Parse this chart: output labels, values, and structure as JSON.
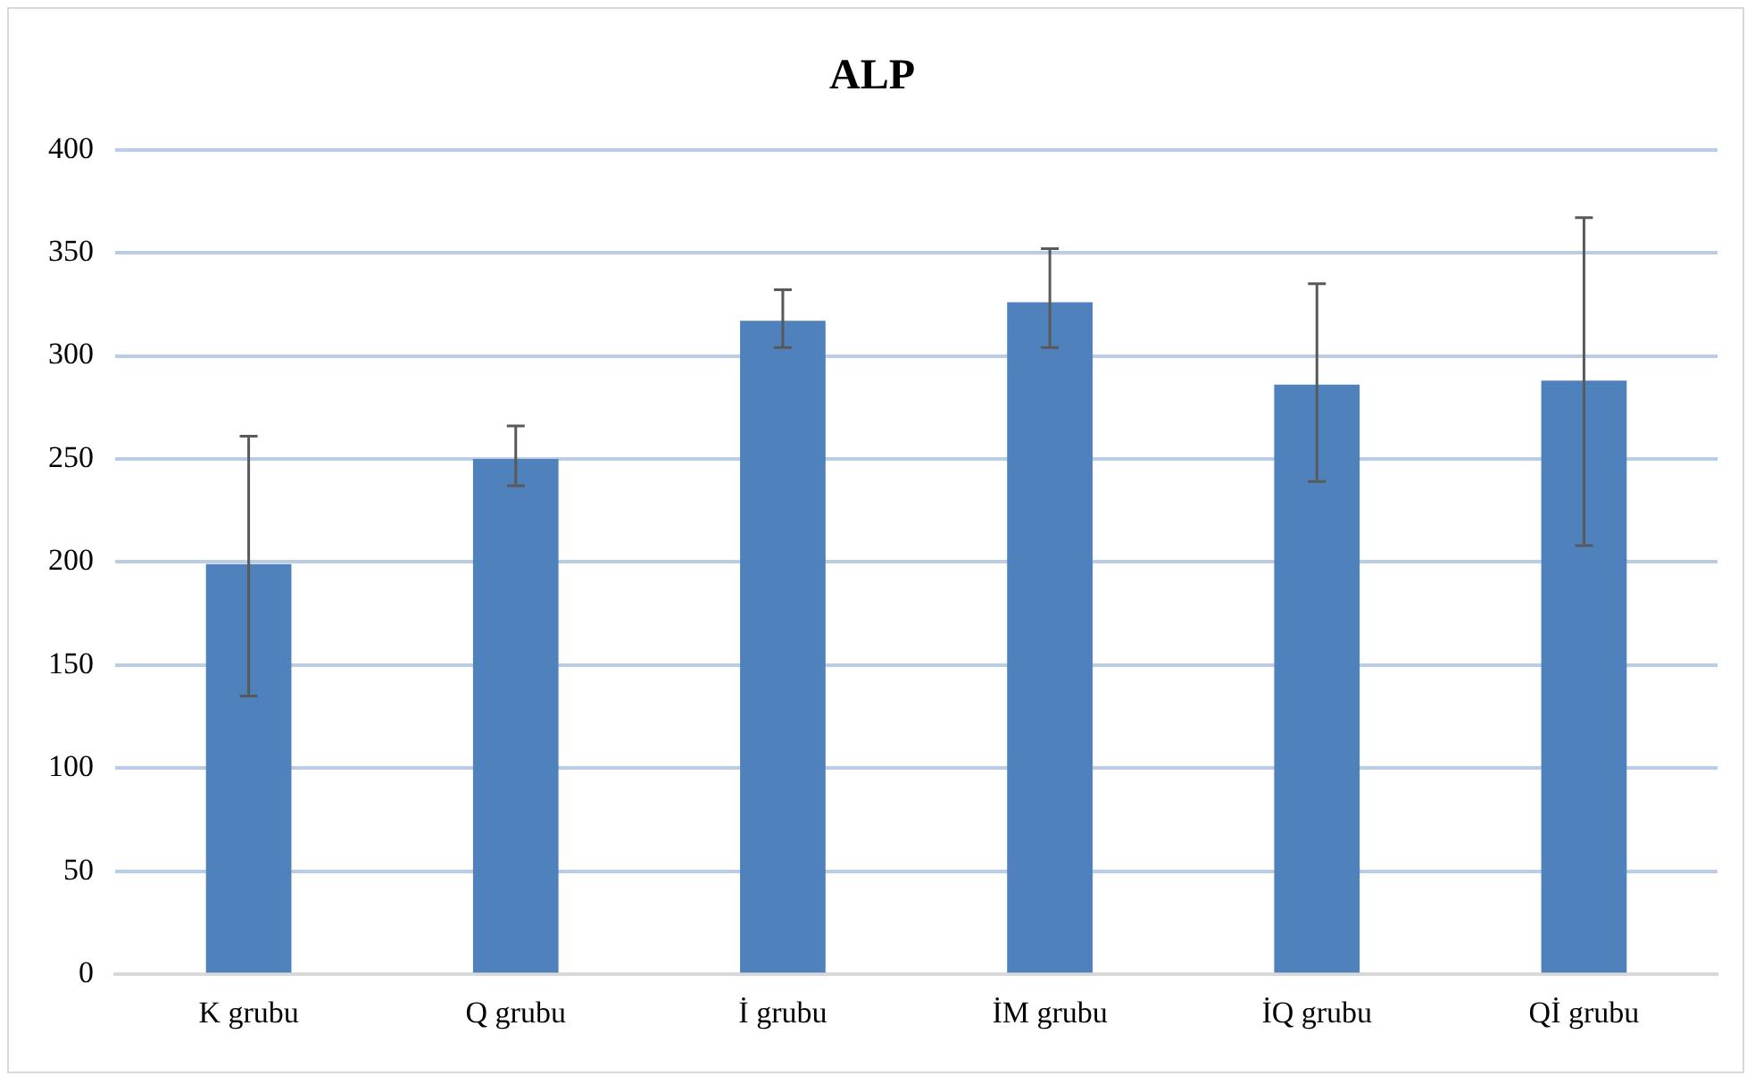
{
  "chart_data": {
    "type": "bar",
    "title": "ALP",
    "categories": [
      "K grubu",
      "Q grubu",
      "İ grubu",
      "İM grubu",
      "İQ grubu",
      "Qİ grubu"
    ],
    "values": [
      199,
      250,
      317,
      326,
      286,
      288
    ],
    "errors": [
      [
        135,
        261
      ],
      [
        237,
        266
      ],
      [
        304,
        332
      ],
      [
        304,
        352
      ],
      [
        239,
        335
      ],
      [
        208,
        367
      ]
    ],
    "color": "#4f81bd",
    "ylim": [
      0,
      400
    ],
    "yticks": [
      0,
      50,
      100,
      150,
      200,
      250,
      300,
      350,
      400
    ],
    "grid": "y"
  }
}
